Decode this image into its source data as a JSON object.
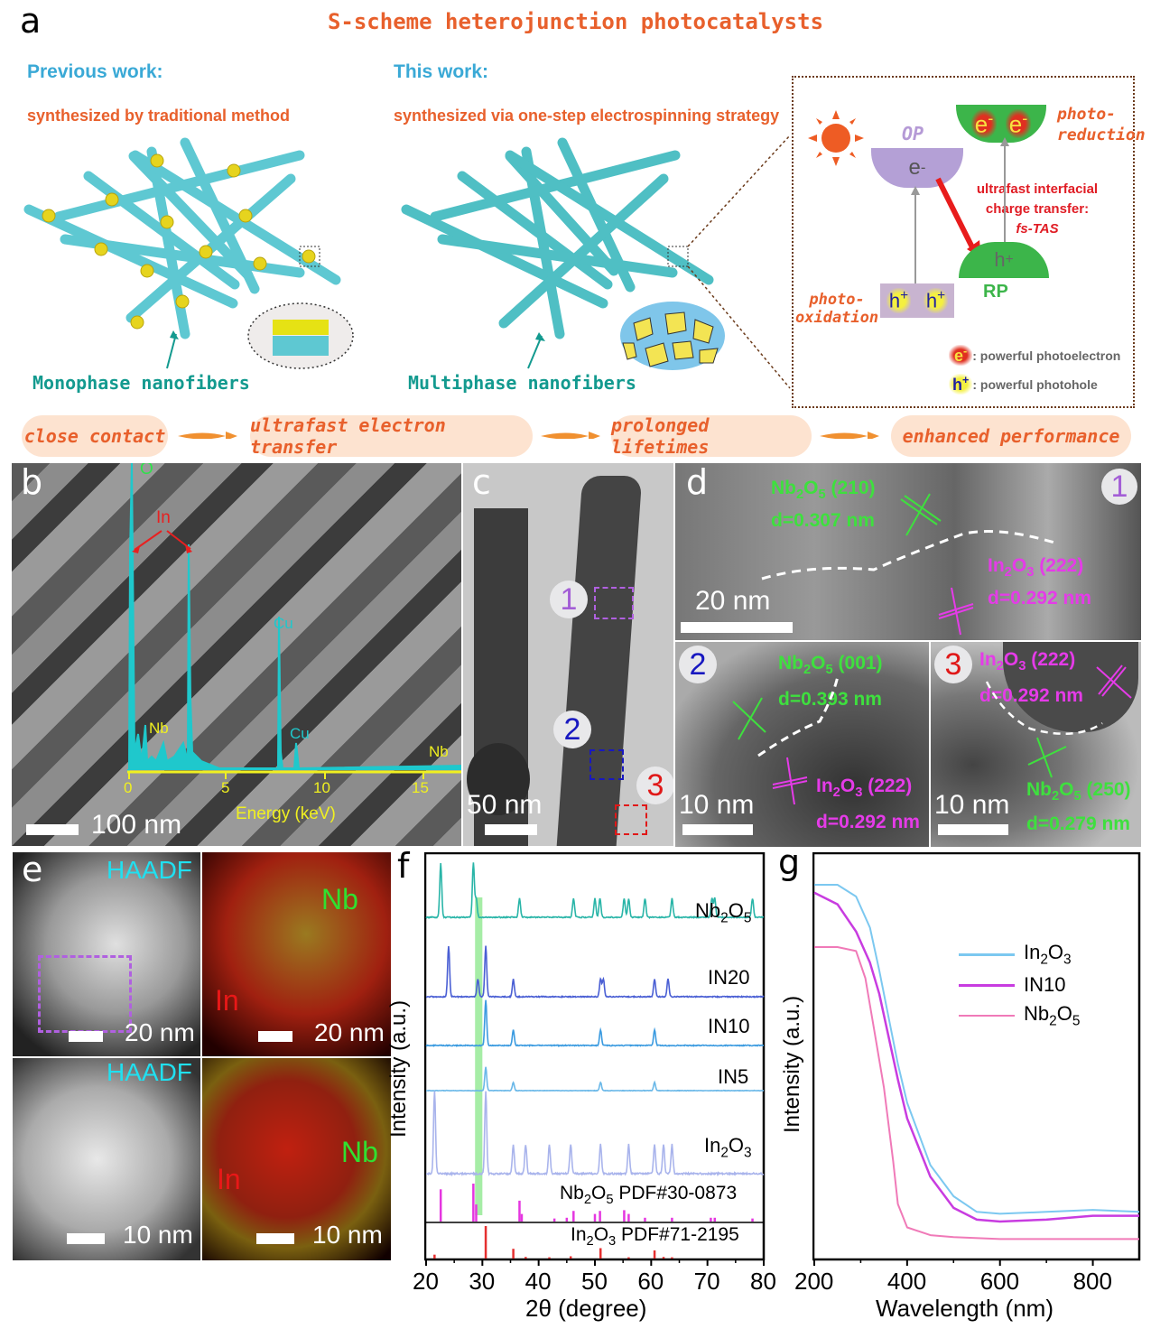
{
  "figure": {
    "title": "S-scheme heterojunction photocatalysts",
    "panel_labels": [
      "a",
      "b",
      "c",
      "d",
      "e",
      "f",
      "g"
    ]
  },
  "panel_a": {
    "previous": {
      "heading": "Previous work:",
      "subheading": "synthesized by traditional method",
      "label": "Monophase nanofibers"
    },
    "this": {
      "heading": "This work:",
      "subheading": "synthesized via one-step electrospinning strategy",
      "label": "Multiphase nanofibers"
    },
    "mechanism": {
      "op_label": "OP",
      "rp_label": "RP",
      "electron": "e",
      "hole": "h",
      "photo_reduction": "photo-\nreduction",
      "photo_reduction_l1": "photo-",
      "photo_reduction_l2": "reduction",
      "photo_oxidation_l1": "photo-",
      "photo_oxidation_l2": "oxidation",
      "transfer_l1": "ultrafast interfacial",
      "transfer_l2": "charge transfer:",
      "transfer_l3": "fs-TAS",
      "legend_electron": ": powerful photoelectron",
      "legend_hole": ": powerful photohole"
    },
    "flow": [
      "close contact",
      "ultrafast electron transfer",
      "prolonged lifetimes",
      "enhanced performance"
    ]
  },
  "panel_b": {
    "scale_bar": "100 nm",
    "eds": {
      "xlabel": "Energy (keV)",
      "ticks": [
        "0",
        "5",
        "10",
        "15"
      ],
      "peaks": {
        "O": "O",
        "In": "In",
        "Nb1": "Nb",
        "Cu1": "Cu",
        "Cu2": "Cu",
        "Nb2": "Nb"
      }
    }
  },
  "panel_c": {
    "scale_bar": "50 nm",
    "regions": [
      "1",
      "2",
      "3"
    ]
  },
  "panel_d": {
    "d1": {
      "marker": "1",
      "scale_bar": "20 nm",
      "nb_plane": "(210)",
      "nb_d": "d=0.307 nm",
      "in_plane": "(222)",
      "in_d": "d=0.292 nm"
    },
    "d2": {
      "marker": "2",
      "scale_bar": "10 nm",
      "nb_plane": "(001)",
      "nb_d": "d=0.393 nm",
      "in_plane": "(222)",
      "in_d": "d=0.292 nm"
    },
    "d3": {
      "marker": "3",
      "scale_bar": "10 nm",
      "in_plane": "(222)",
      "in_d": "d=0.292 nm",
      "nb_plane": "(250)",
      "nb_d": "d=0.279 nm"
    }
  },
  "panel_e": {
    "haadf_label": "HAADF",
    "nb_label": "Nb",
    "in_label": "In",
    "scale_top": "20 nm",
    "scale_bottom": "10 nm"
  },
  "chart_data": [
    {
      "type": "line",
      "title": "",
      "xlabel": "2θ (degree)",
      "ylabel": "Intensity (a.u.)",
      "xlim": [
        20,
        80
      ],
      "xticks": [
        "20",
        "30",
        "40",
        "50",
        "60",
        "70",
        "80"
      ],
      "grid": false,
      "highlight_band": [
        28.7,
        30.0
      ],
      "series": [
        {
          "name": "Nb2O5",
          "color": "#2ab5a8",
          "peaks_2theta": [
            22.6,
            28.4,
            28.9,
            36.6,
            46.2,
            50.0,
            50.9,
            55.2,
            56.0,
            58.9,
            63.7,
            70.8,
            71.3,
            78.0
          ]
        },
        {
          "name": "IN20",
          "color": "#4a5fd4",
          "peaks_2theta": [
            24.0,
            29.2,
            30.6,
            35.5,
            51.0,
            51.5,
            60.6,
            63.0
          ]
        },
        {
          "name": "IN10",
          "color": "#3b9be0",
          "peaks_2theta": [
            30.6,
            35.5,
            51.0,
            60.6
          ]
        },
        {
          "name": "IN5",
          "color": "#6ab8e8",
          "peaks_2theta": [
            30.6,
            35.5,
            51.0,
            60.6
          ]
        },
        {
          "name": "In2O3",
          "color": "#a9b4ec",
          "peaks_2theta": [
            21.5,
            30.6,
            35.5,
            37.7,
            41.9,
            45.7,
            51.0,
            56.0,
            60.6,
            62.2,
            63.7
          ]
        }
      ],
      "references": [
        {
          "name": "Nb2O5 PDF#30-0873",
          "color": "#e536e0",
          "lines": [
            {
              "x": 22.6,
              "h": 0.85
            },
            {
              "x": 28.4,
              "h": 1.0
            },
            {
              "x": 28.9,
              "h": 0.45
            },
            {
              "x": 36.6,
              "h": 0.55
            },
            {
              "x": 37.0,
              "h": 0.2
            },
            {
              "x": 42.8,
              "h": 0.08
            },
            {
              "x": 45.0,
              "h": 0.1
            },
            {
              "x": 46.2,
              "h": 0.28
            },
            {
              "x": 50.0,
              "h": 0.2
            },
            {
              "x": 50.9,
              "h": 0.28
            },
            {
              "x": 55.2,
              "h": 0.3
            },
            {
              "x": 56.0,
              "h": 0.2
            },
            {
              "x": 58.9,
              "h": 0.1
            },
            {
              "x": 63.7,
              "h": 0.1
            },
            {
              "x": 70.6,
              "h": 0.1
            },
            {
              "x": 71.3,
              "h": 0.1
            },
            {
              "x": 78.0,
              "h": 0.08
            }
          ]
        },
        {
          "name": "In2O3 PDF#71-2195",
          "color": "#e53030",
          "lines": [
            {
              "x": 21.5,
              "h": 0.12
            },
            {
              "x": 30.6,
              "h": 1.0
            },
            {
              "x": 35.5,
              "h": 0.3
            },
            {
              "x": 37.7,
              "h": 0.05
            },
            {
              "x": 41.9,
              "h": 0.04
            },
            {
              "x": 45.7,
              "h": 0.07
            },
            {
              "x": 51.0,
              "h": 0.32
            },
            {
              "x": 56.0,
              "h": 0.04
            },
            {
              "x": 60.6,
              "h": 0.25
            },
            {
              "x": 62.2,
              "h": 0.05
            },
            {
              "x": 63.7,
              "h": 0.04
            }
          ]
        }
      ],
      "series_labels": [
        "Nb2O5",
        "IN20",
        "IN10",
        "IN5",
        "In2O3"
      ]
    },
    {
      "type": "line",
      "title": "",
      "xlabel": "Wavelength (nm)",
      "ylabel": "Intensity (a.u.)",
      "xlim": [
        200,
        900
      ],
      "xticks": [
        "200",
        "400",
        "600",
        "800"
      ],
      "grid": false,
      "legend_position": "upper right",
      "series": [
        {
          "name": "In2O3",
          "color": "#7cc8f0",
          "x": [
            200,
            250,
            290,
            320,
            340,
            360,
            380,
            400,
            450,
            500,
            550,
            600,
            700,
            800,
            900
          ],
          "y": [
            0.96,
            0.96,
            0.93,
            0.85,
            0.74,
            0.62,
            0.5,
            0.4,
            0.24,
            0.16,
            0.12,
            0.115,
            0.12,
            0.125,
            0.12
          ]
        },
        {
          "name": "IN10",
          "color": "#c83ce0",
          "x": [
            200,
            250,
            290,
            320,
            340,
            360,
            380,
            400,
            450,
            500,
            550,
            600,
            700,
            800,
            900
          ],
          "y": [
            0.94,
            0.91,
            0.84,
            0.76,
            0.68,
            0.57,
            0.46,
            0.36,
            0.21,
            0.13,
            0.1,
            0.095,
            0.1,
            0.11,
            0.11
          ]
        },
        {
          "name": "Nb2O5",
          "color": "#f07ab8",
          "x": [
            200,
            250,
            290,
            310,
            330,
            350,
            370,
            380,
            400,
            450,
            500,
            600,
            700,
            800,
            900
          ],
          "y": [
            0.8,
            0.8,
            0.79,
            0.72,
            0.58,
            0.44,
            0.25,
            0.14,
            0.08,
            0.06,
            0.055,
            0.05,
            0.05,
            0.05,
            0.05
          ]
        }
      ],
      "legend": [
        "In2O3",
        "IN10",
        "Nb2O5"
      ]
    }
  ]
}
